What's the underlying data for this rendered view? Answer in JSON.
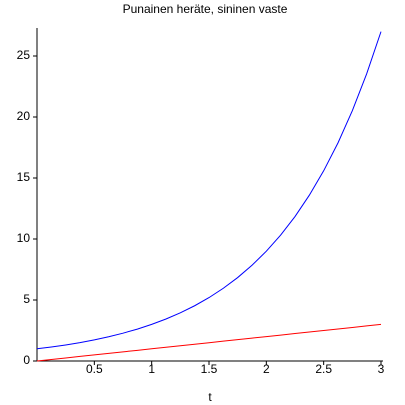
{
  "chart_data": {
    "type": "line",
    "title": "Punainen heräte, sininen vaste",
    "x_label": "t",
    "x": [
      0,
      0.125,
      0.25,
      0.375,
      0.5,
      0.625,
      0.75,
      0.875,
      1,
      1.125,
      1.25,
      1.375,
      1.5,
      1.625,
      1.75,
      1.875,
      2,
      2.125,
      2.25,
      2.375,
      2.5,
      2.625,
      2.75,
      2.875,
      3
    ],
    "series": [
      {
        "name": "heräte",
        "color": "#ff0000",
        "values": [
          0,
          0.125,
          0.25,
          0.375,
          0.5,
          0.625,
          0.75,
          0.875,
          1,
          1.125,
          1.25,
          1.375,
          1.5,
          1.625,
          1.75,
          1.875,
          2,
          2.125,
          2.25,
          2.375,
          2.5,
          2.625,
          2.75,
          2.875,
          3
        ]
      },
      {
        "name": "vaste",
        "color": "#0000ff",
        "values": [
          1,
          1.147,
          1.316,
          1.51,
          1.732,
          1.987,
          2.28,
          2.616,
          3,
          3.441,
          3.948,
          4.529,
          5.196,
          5.961,
          6.839,
          7.847,
          9,
          10.32,
          11.84,
          13.59,
          15.59,
          17.88,
          20.52,
          23.54,
          27
        ]
      }
    ],
    "xlim": [
      0,
      3
    ],
    "xticks": [
      0.5,
      1,
      1.5,
      2,
      2.5,
      3
    ],
    "ylim": [
      0,
      27
    ],
    "yticks": [
      0,
      5,
      10,
      15,
      20,
      25
    ]
  }
}
